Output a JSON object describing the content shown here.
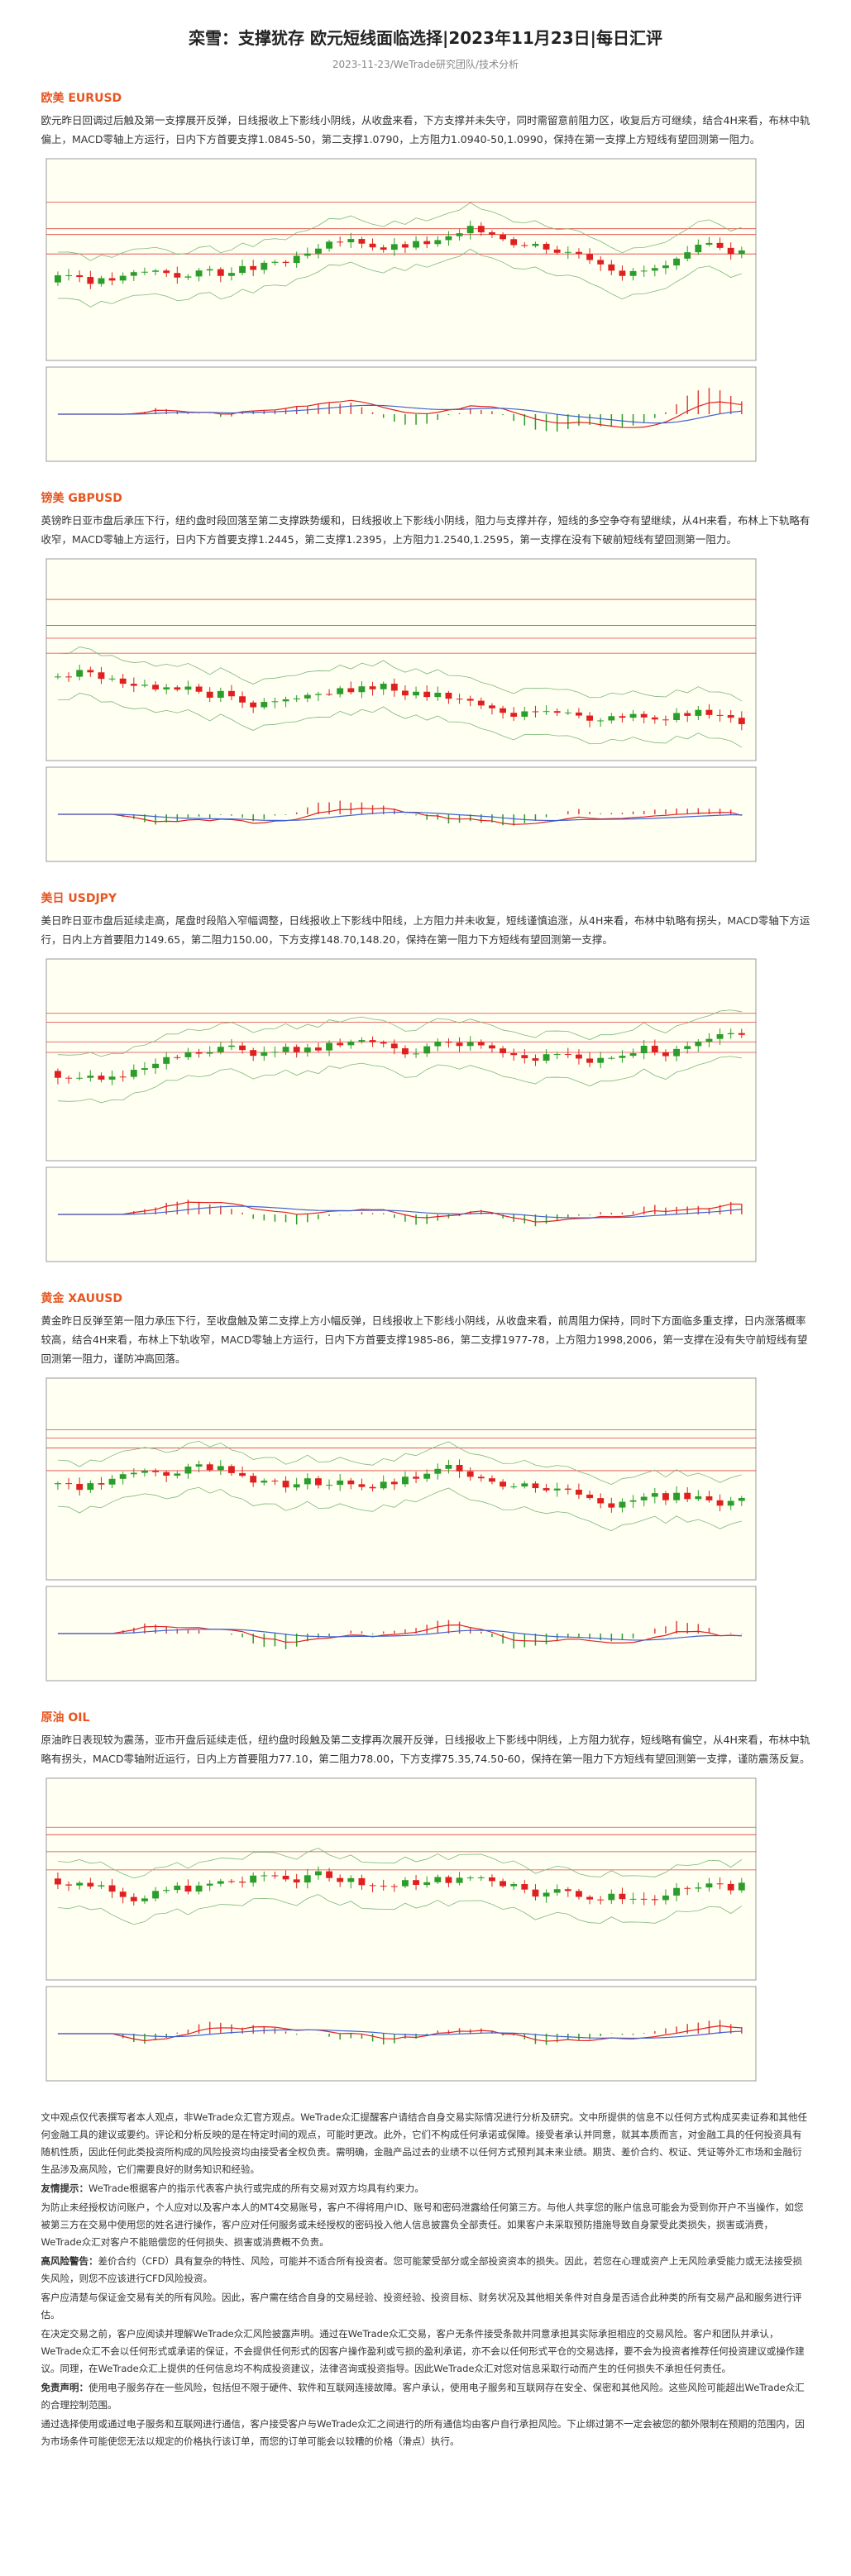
{
  "header": {
    "title": "栾雪：支撑犹存 欧元短线面临选择|2023年11月23日|每日汇评",
    "subtitle": "2023-11-23/WeTrade研究团队/技术分析"
  },
  "sections": [
    {
      "heading": "欧美 EURUSD",
      "body": "欧元昨日回调过后触及第一支撑展开反弹，日线报收上下影线小阴线，从收盘来看，下方支撑并未失守，同时需留意前阻力区，收复后方可继续，结合4H来看，布林中轨偏上，MACD零轴上方运行，日内下方首要支撑1.0845-50，第二支撑1.0790，上方阻力1.0940-50,1.0990，保持在第一支撑上方短线有望回测第一阻力。"
    },
    {
      "heading": "镑美 GBPUSD",
      "body": "英镑昨日亚市盘后承压下行，纽约盘时段回落至第二支撑跌势缓和，日线报收上下影线小阴线，阻力与支撑并存，短线的多空争夺有望继续，从4H来看，布林上下轨略有收窄，MACD零轴上方运行，日内下方首要支撑1.2445，第二支撑1.2395，上方阻力1.2540,1.2595，第一支撑在没有下破前短线有望回测第一阻力。"
    },
    {
      "heading": "美日 USDJPY",
      "body": "美日昨日亚市盘后延续走高，尾盘时段陷入窄幅调整，日线报收上下影线中阳线，上方阻力并未收复，短线谨慎追涨，从4H来看，布林中轨略有拐头，MACD零轴下方运行，日内上方首要阻力149.65，第二阻力150.00，下方支撑148.70,148.20，保持在第一阻力下方短线有望回测第一支撑。"
    },
    {
      "heading": "黄金 XAUUSD",
      "body": "黄金昨日反弹至第一阻力承压下行，至收盘触及第二支撑上方小幅反弹，日线报收上下影线小阴线，从收盘来看，前周阻力保持，同时下方面临多重支撑，日内涨落概率较高，结合4H来看，布林上下轨收窄，MACD零轴上方运行，日内下方首要支撑1985-86，第二支撑1977-78，上方阻力1998,2006，第一支撑在没有失守前短线有望回测第一阻力，谨防冲高回落。"
    },
    {
      "heading": "原油 OIL",
      "body": "原油昨日表现较为震荡，亚市开盘后延续走低，纽约盘时段触及第二支撑再次展开反弹，日线报收上下影线中阴线，上方阻力犹存，短线略有偏空，从4H来看，布林中轨略有拐头，MACD零轴附近运行，日内上方首要阻力77.10，第二阻力78.00，下方支撑75.35,74.50-60，保持在第一阻力下方短线有望回测第一支撑，谨防震荡反复。"
    }
  ],
  "disclaimer": {
    "paragraphs": [
      {
        "text": "文中观点仅代表撰写者本人观点，非WeTrade众汇官方观点。WeTrade众汇提醒客户请结合自身交易实际情况进行分析及研究。文中所提供的信息不以任何方式构成买卖证券和其他任何金融工具的建议或要约。评论和分析反映的是在特定时间的观点，可能时更改。此外，它们不构成任何承诺或保障。接受者承认并同意，就其本质而言，对金融工具的任何投资具有随机性质，因此任何此类投资所构成的风险投资均由接受者全权负责。需明确，金融产品过去的业绩不以任何方式预判其未来业绩。期货、差价合约、权证、凭证等外汇市场和金融衍生品涉及高风险，它们需要良好的财务知识和经验。"
      },
      {
        "lead": "友情提示：",
        "text": "WeTrade根据客户的指示代表客户执行或完成的所有交易对双方均具有约束力。"
      },
      {
        "text": "为防止未经授权访问账户，个人应对以及客户本人的MT4交易账号，客户不得将用户ID、账号和密码泄露给任何第三方。与他人共享您的账户信息可能会为受到你开户不当操作，如您被第三方在交易中使用您的姓名进行操作，客户应对任何服务或未经授权的密码投入他人信息披露负全部责任。如果客户未采取预防措施导致自身蒙受此类损失，损害或消费，WeTrade众汇对客户不能赔偿您的任何损失、损害或消费概不负责。"
      },
      {
        "lead": "高风险警告：",
        "text": "差价合约（CFD）具有复杂的特性、风险，可能并不适合所有投资者。您可能蒙受部分或全部投资资本的损失。因此，若您在心理或资产上无风险承受能力或无法接受损失风险，则您不应该进行CFD风险投资。"
      },
      {
        "text": "客户应清楚与保证金交易有关的所有风险。因此，客户需在结合自身的交易经验、投资经验、投资目标、财务状况及其他相关条件对自身是否适合此种类的所有交易产品和服务进行评估。"
      },
      {
        "text": "在决定交易之前，客户应阅读并理解WeTrade众汇风险披露声明。通过在WeTrade众汇交易，客户无条件接受条款并同意承担其实际承担相应的交易风险。客户和团队并承认，WeTrade众汇不会以任何形式或承诺的保证，不会提供任何形式的因客户操作盈利或亏损的盈利承诺，亦不会以任何形式平仓的交易选择，要不会为投资者推荐任何投资建议或操作建议。同理，在WeTrade众汇上提供的任何信息均不构成投资建议，法律咨询或投资指导。因此WeTrade众汇对您对信息采取行动而产生的任何损失不承担任何责任。"
      },
      {
        "lead": "免责声明：",
        "text": "使用电子服务存在一些风险，包括但不限于硬件、软件和互联网连接故障。客户承认，使用电子服务和互联网存在安全、保密和其他风险。这些风险可能超出WeTrade众汇的合理控制范围。"
      },
      {
        "text": "通过选择使用或通过电子服务和互联网进行通信，客户接受客户与WeTrade众汇之间进行的所有通信均由客户自行承担风险。下止绑过第不一定会被您的额外限制在预期的范围内，因为市场条件可能使您无法以规定的价格执行该订单，而您的订单可能会以较糟的价格（滑点）执行。"
      }
    ]
  }
}
